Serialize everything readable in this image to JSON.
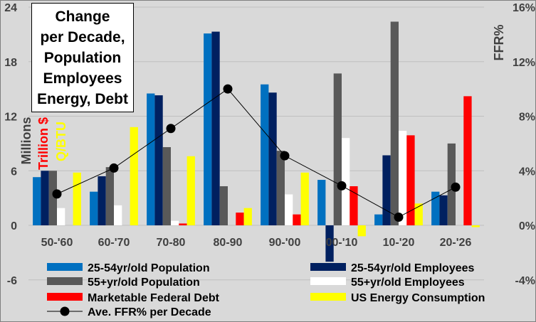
{
  "chart_data": {
    "type": "bar",
    "title": "Change\nper Decade,\nPopulation\nEmployees\nEnergy, Debt",
    "categories": [
      "50-'60",
      "60-'70",
      "70-80",
      "80-90",
      "90-'00",
      "00-'10",
      "10-'20",
      "20-'26"
    ],
    "left_axis": {
      "min": -6,
      "max": 24,
      "ticks": [
        -6,
        0,
        6,
        12,
        18,
        24
      ],
      "tick_labels": [
        "-6",
        "0",
        "6",
        "12",
        "18",
        "24"
      ]
    },
    "right_axis": {
      "min": -4,
      "max": 16,
      "ticks": [
        -4,
        0,
        4,
        8,
        12,
        16
      ],
      "tick_labels": [
        "-4%",
        "0%",
        "4%",
        "8%",
        "12%",
        "16%"
      ],
      "label": "FFR%"
    },
    "left_axis_labels": [
      {
        "text": "Millions",
        "color": "#404040"
      },
      {
        "text": "Trillion $",
        "color": "#ff0000"
      },
      {
        "text": "Q/BTU",
        "color": "#ffff00"
      }
    ],
    "series": [
      {
        "name": "25-54yr/old Population",
        "color": "#0070c0",
        "values": [
          5.3,
          3.7,
          14.5,
          21.1,
          15.5,
          5.0,
          1.2,
          3.7
        ]
      },
      {
        "name": "25-54yr/old Employees",
        "color": "#002060",
        "values": [
          6.0,
          5.4,
          14.3,
          21.3,
          14.6,
          -4.0,
          7.7,
          3.3
        ]
      },
      {
        "name": "55+yr/old Population",
        "color": "#595959",
        "values": [
          6.0,
          6.4,
          8.6,
          4.3,
          8.2,
          16.7,
          22.4,
          9.0
        ]
      },
      {
        "name": "55+yr/old Employees",
        "color": "#ffffff",
        "values": [
          1.9,
          2.2,
          0.5,
          0.0,
          3.4,
          9.6,
          10.4,
          0.0
        ]
      },
      {
        "name": "Marketable Federal Debt",
        "color": "#ff0000",
        "values": [
          0.0,
          0.0,
          0.2,
          1.4,
          1.2,
          4.3,
          9.9,
          14.2
        ]
      },
      {
        "name": "US Energy Consumption",
        "color": "#ffff00",
        "values": [
          5.8,
          10.8,
          7.6,
          1.9,
          5.8,
          -1.2,
          2.4,
          -0.2
        ]
      }
    ],
    "line": {
      "name": "Ave. FFR%",
      "axis": "right",
      "values": [
        2.3,
        4.2,
        7.1,
        10.0,
        5.1,
        2.9,
        0.6,
        2.8
      ]
    },
    "legend": [
      {
        "label": "25-54yr/old Population",
        "swatch": "bar",
        "color": "#0070c0"
      },
      {
        "label": "25-54yr/old Employees",
        "swatch": "bar",
        "color": "#002060"
      },
      {
        "label": "55+yr/old Population",
        "swatch": "bar",
        "color": "#595959"
      },
      {
        "label": "55+yr/old Employees",
        "swatch": "bar",
        "color": "#ffffff"
      },
      {
        "label": "Marketable Federal Debt",
        "swatch": "bar",
        "color": "#ff0000"
      },
      {
        "label": "US Energy Consumption",
        "swatch": "bar",
        "color": "#ffff00"
      },
      {
        "label": "Ave. FFR% per Decade",
        "swatch": "line",
        "color": "#000000"
      }
    ],
    "legend_position": "bottom",
    "background": "#d9d9d9",
    "grid": true
  }
}
